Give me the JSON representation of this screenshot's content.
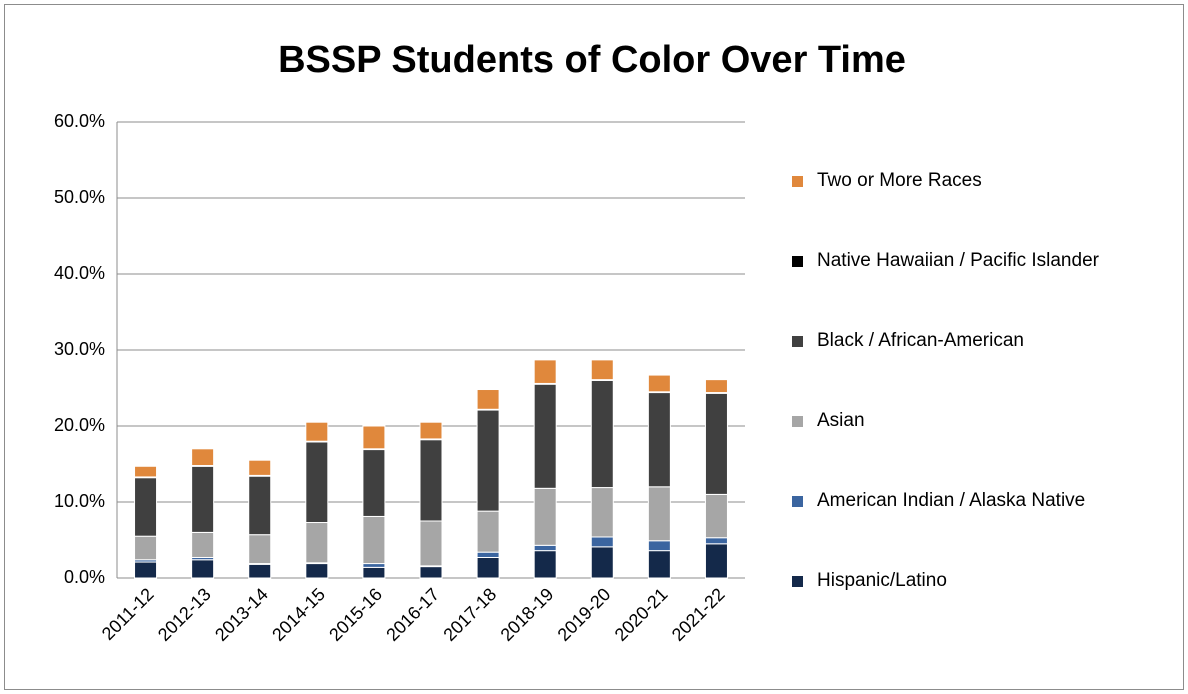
{
  "chart_data": {
    "type": "stacked_bar",
    "title": "BSSP Students of Color Over Time",
    "categories": [
      "2011-12",
      "2012-13",
      "2013-14",
      "2014-15",
      "2015-16",
      "2016-17",
      "2017-18",
      "2018-19",
      "2019-20",
      "2020-21",
      "2021-22"
    ],
    "series": [
      {
        "name": "Hispanic/Latino",
        "color": "#14294a",
        "values": [
          2.1,
          2.4,
          1.8,
          1.9,
          1.4,
          1.5,
          2.7,
          3.6,
          4.1,
          3.6,
          4.5
        ]
      },
      {
        "name": "American Indian / Alaska Native",
        "color": "#3b65a0",
        "values": [
          0.3,
          0.3,
          0.1,
          0.1,
          0.5,
          0.1,
          0.7,
          0.7,
          1.3,
          1.3,
          0.8
        ]
      },
      {
        "name": "Asian",
        "color": "#a6a6a6",
        "values": [
          3.1,
          3.3,
          3.8,
          5.3,
          6.2,
          5.9,
          5.4,
          7.5,
          6.5,
          7.1,
          5.7
        ]
      },
      {
        "name": "Black / African-American",
        "color": "#404040",
        "values": [
          7.7,
          8.7,
          7.7,
          10.6,
          8.8,
          10.7,
          13.3,
          13.7,
          14.1,
          12.4,
          13.3
        ]
      },
      {
        "name": "Native Hawaiian / Pacific Islander",
        "color": "#000000",
        "values": [
          0.1,
          0.1,
          0.1,
          0.1,
          0.1,
          0.1,
          0.1,
          0.1,
          0.1,
          0.1,
          0.1
        ]
      },
      {
        "name": "Two or More Races",
        "color": "#e0883c",
        "values": [
          1.4,
          2.2,
          2.0,
          2.5,
          3.0,
          2.2,
          2.6,
          3.1,
          2.6,
          2.2,
          1.7
        ]
      }
    ],
    "ylim": [
      0,
      60
    ],
    "yticks": [
      {
        "value": 0,
        "label": "0.0%"
      },
      {
        "value": 10,
        "label": "10.0%"
      },
      {
        "value": 20,
        "label": "20.0%"
      },
      {
        "value": 30,
        "label": "30.0%"
      },
      {
        "value": 40,
        "label": "40.0%"
      },
      {
        "value": 50,
        "label": "50.0%"
      },
      {
        "value": 60,
        "label": "60.0%"
      }
    ],
    "grid": true,
    "legend": "right"
  }
}
